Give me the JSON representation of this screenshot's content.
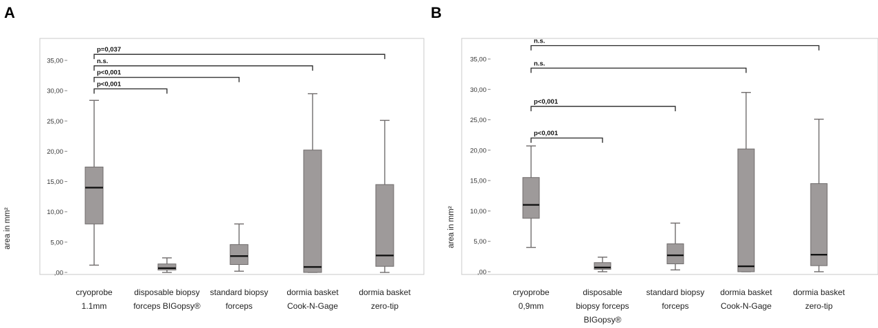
{
  "chart_data": [
    {
      "panel": "A",
      "type": "box",
      "ylabel": "area in mm²",
      "ylim": [
        0,
        38
      ],
      "yticks": [
        ",00",
        "5,00",
        "10,00",
        "15,00",
        "20,00",
        "25,00",
        "30,00",
        "35,00"
      ],
      "categories": [
        [
          "cryoprobe",
          "1.1mm"
        ],
        [
          "disposable biopsy",
          "forceps BIGopsy®"
        ],
        [
          "standard biopsy",
          "forceps"
        ],
        [
          "dormia basket",
          "Cook-N-Gage"
        ],
        [
          "dormia basket",
          "zero-tip"
        ]
      ],
      "boxes": [
        {
          "whisker_low": 1.2,
          "q1": 8.0,
          "median": 14.0,
          "q3": 17.4,
          "whisker_high": 28.4
        },
        {
          "whisker_low": 0.0,
          "q1": 0.4,
          "median": 0.7,
          "q3": 1.4,
          "whisker_high": 2.4
        },
        {
          "whisker_low": 0.2,
          "q1": 1.3,
          "median": 2.7,
          "q3": 4.6,
          "whisker_high": 8.0
        },
        {
          "whisker_low": 0.0,
          "q1": 0.0,
          "median": 0.9,
          "q3": 20.2,
          "whisker_high": 29.5
        },
        {
          "whisker_low": 0.0,
          "q1": 1.0,
          "median": 2.8,
          "q3": 14.5,
          "whisker_high": 25.1
        }
      ],
      "comparisons": [
        {
          "from": 0,
          "to": 4,
          "label": "p=0,037",
          "y": 36.0
        },
        {
          "from": 0,
          "to": 3,
          "label": "n.s.",
          "y": 34.1
        },
        {
          "from": 0,
          "to": 2,
          "label": "p<0,001",
          "y": 32.2
        },
        {
          "from": 0,
          "to": 1,
          "label": "p<0,001",
          "y": 30.3
        }
      ]
    },
    {
      "panel": "B",
      "type": "box",
      "ylabel": "area in mm²",
      "ylim": [
        0,
        38
      ],
      "yticks": [
        ",00",
        "5,00",
        "10,00",
        "15,00",
        "20,00",
        "25,00",
        "30,00",
        "35,00"
      ],
      "categories": [
        [
          "cryoprobe",
          "0,9mm"
        ],
        [
          "disposable",
          "biopsy forceps",
          "BIGopsy®"
        ],
        [
          "standard biopsy",
          "forceps"
        ],
        [
          "dormia basket",
          "Cook-N-Gage"
        ],
        [
          "dormia basket",
          "zero-tip"
        ]
      ],
      "boxes": [
        {
          "whisker_low": 4.0,
          "q1": 8.8,
          "median": 11.0,
          "q3": 15.5,
          "whisker_high": 20.7
        },
        {
          "whisker_low": 0.0,
          "q1": 0.4,
          "median": 0.7,
          "q3": 1.5,
          "whisker_high": 2.4
        },
        {
          "whisker_low": 0.3,
          "q1": 1.3,
          "median": 2.7,
          "q3": 4.6,
          "whisker_high": 8.0
        },
        {
          "whisker_low": 0.0,
          "q1": 0.0,
          "median": 0.9,
          "q3": 20.2,
          "whisker_high": 29.5
        },
        {
          "whisker_low": 0.0,
          "q1": 1.0,
          "median": 2.8,
          "q3": 14.5,
          "whisker_high": 25.1
        }
      ],
      "comparisons": [
        {
          "from": 0,
          "to": 4,
          "label": "n.s.",
          "y": 37.2
        },
        {
          "from": 0,
          "to": 3,
          "label": "n.s.",
          "y": 33.5
        },
        {
          "from": 0,
          "to": 2,
          "label": "p<0,001",
          "y": 27.2
        },
        {
          "from": 0,
          "to": 1,
          "label": "p<0,001",
          "y": 22.0
        }
      ]
    }
  ],
  "colors": {
    "box_fill": "#9e9a9a",
    "box_stroke": "#6f6b6b",
    "median": "#111111",
    "whisker": "#6f6b6b",
    "frame": "#c8c8c8",
    "bracket": "#222222"
  }
}
